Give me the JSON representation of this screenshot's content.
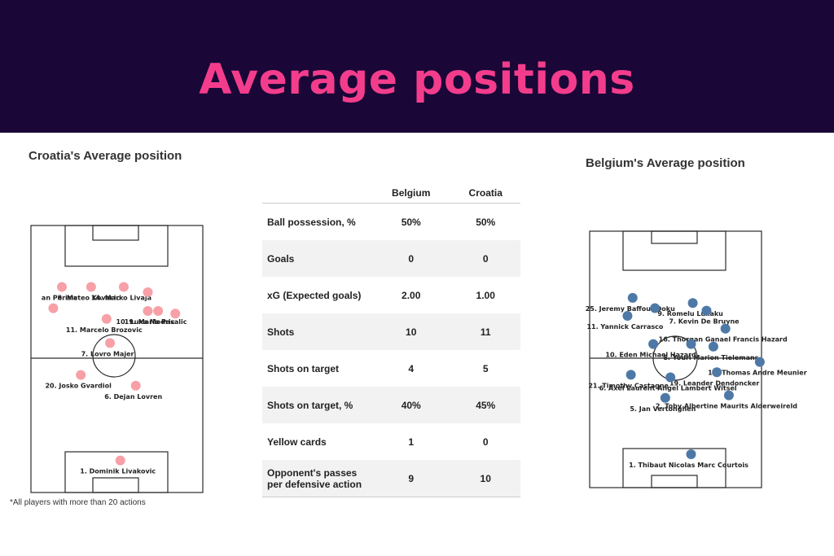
{
  "header": {
    "title": "Average positions"
  },
  "croatia_panel": {
    "title": "Croatia's Average position",
    "color": "#f7a0a8"
  },
  "belgium_panel": {
    "title": "Belgium's Average position",
    "color": "#4e79a7"
  },
  "footnote": "*All players with more than 20 actions",
  "stats_table": {
    "columns": [
      "",
      "Belgium",
      "Croatia"
    ],
    "rows": [
      {
        "metric": "Ball possession, %",
        "belgium": "50%",
        "croatia": "50%"
      },
      {
        "metric": "Goals",
        "belgium": "0",
        "croatia": "0"
      },
      {
        "metric": "xG (Expected goals)",
        "belgium": "2.00",
        "croatia": "1.00"
      },
      {
        "metric": "Shots",
        "belgium": "10",
        "croatia": "11"
      },
      {
        "metric": "Shots on target",
        "belgium": "4",
        "croatia": "5"
      },
      {
        "metric": "Shots on target, %",
        "belgium": "40%",
        "croatia": "45%"
      },
      {
        "metric": "Yellow cards",
        "belgium": "1",
        "croatia": "0"
      },
      {
        "metric": "Opponent's passes per defensive action",
        "belgium": "9",
        "croatia": "10"
      }
    ]
  },
  "chart_data": [
    {
      "type": "scatter",
      "title": "Croatia's Average position",
      "xlim": [
        0,
        100
      ],
      "ylim": [
        0,
        100
      ],
      "points": [
        {
          "label": "an Perisic",
          "x": 18,
          "y": 77
        },
        {
          "label": "14. Marko Livaja",
          "x": 54,
          "y": 77
        },
        {
          "label": "8. Mateo Kovacic",
          "x": 35,
          "y": 77
        },
        {
          "label": "",
          "x": 68,
          "y": 75
        },
        {
          "label": "",
          "x": 13,
          "y": 69
        },
        {
          "label": "10. Luka Modric",
          "x": 68,
          "y": 68
        },
        {
          "label": "19. Mario Pasalic",
          "x": 74,
          "y": 68
        },
        {
          "label": "",
          "x": 84,
          "y": 67
        },
        {
          "label": "11. Marcelo Brozovic",
          "x": 44,
          "y": 65
        },
        {
          "label": "7. Lovro Majer",
          "x": 46,
          "y": 56
        },
        {
          "label": "20. Josko Gvardiol",
          "x": 29,
          "y": 44
        },
        {
          "label": "6. Dejan Lovren",
          "x": 61,
          "y": 40
        },
        {
          "label": "1. Dominik Livakovic",
          "x": 52,
          "y": 12
        }
      ]
    },
    {
      "type": "scatter",
      "title": "Belgium's Average position",
      "xlim": [
        0,
        100
      ],
      "ylim": [
        0,
        100
      ],
      "points": [
        {
          "label": "25. Jeremy Baffour Doku",
          "x": 25,
          "y": 74
        },
        {
          "label": "9. Romelu Lukaku",
          "x": 60,
          "y": 72
        },
        {
          "label": "",
          "x": 38,
          "y": 70
        },
        {
          "label": "7. Kevin De Bruyne",
          "x": 68,
          "y": 69
        },
        {
          "label": "11. Yannick Carrasco",
          "x": 22,
          "y": 67
        },
        {
          "label": "16. Thorgan Ganael Francis Hazard",
          "x": 79,
          "y": 62
        },
        {
          "label": "10. Eden Michael Hazard",
          "x": 37,
          "y": 56
        },
        {
          "label": "",
          "x": 59,
          "y": 56
        },
        {
          "label": "8. Youri Marion Tielemans",
          "x": 72,
          "y": 55
        },
        {
          "label": "15. Thomas Andre Meunier",
          "x": 99,
          "y": 49
        },
        {
          "label": "19. Leander Dendoncker",
          "x": 74,
          "y": 45
        },
        {
          "label": "21. Timothy Castagne",
          "x": 24,
          "y": 44
        },
        {
          "label": "6. Axel Laurent Angel Lambert Witsel",
          "x": 47,
          "y": 43
        },
        {
          "label": "2. Toby Albertine Maurits Alderweireld",
          "x": 81,
          "y": 36
        },
        {
          "label": "5. Jan Vertonghen",
          "x": 44,
          "y": 35
        },
        {
          "label": "1. Thibaut Nicolas Marc Courtois",
          "x": 59,
          "y": 13
        }
      ]
    }
  ]
}
